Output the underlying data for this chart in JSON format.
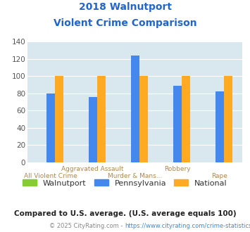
{
  "title_line1": "2018 Walnutport",
  "title_line2": "Violent Crime Comparison",
  "walnutport": [
    0,
    0,
    0,
    0,
    0
  ],
  "pennsylvania": [
    80,
    76,
    124,
    89,
    82
  ],
  "national": [
    100,
    100,
    100,
    100,
    100
  ],
  "colors_walnutport": "#88cc33",
  "colors_pennsylvania": "#4488ee",
  "colors_national": "#ffaa22",
  "ylim": [
    0,
    140
  ],
  "yticks": [
    0,
    20,
    40,
    60,
    80,
    100,
    120,
    140
  ],
  "title_color": "#2266cc",
  "bg_color": "#d8e8ee",
  "grid_color": "#c5d8e0",
  "xtick_row1": [
    "",
    "Aggravated Assault",
    "",
    "Robbery",
    ""
  ],
  "xtick_row2": [
    "All Violent Crime",
    "",
    "Murder & Mans...",
    "",
    "Rape"
  ],
  "footnote1": "Compared to U.S. average. (U.S. average equals 100)",
  "footnote2_prefix": "© 2025 CityRating.com - ",
  "footnote2_link": "https://www.cityrating.com/crime-statistics/",
  "footnote1_color": "#222222",
  "footnote2_prefix_color": "#888888",
  "footnote2_link_color": "#4488cc",
  "legend_labels": [
    "Walnutport",
    "Pennsylvania",
    "National"
  ],
  "legend_text_color": "#333333"
}
